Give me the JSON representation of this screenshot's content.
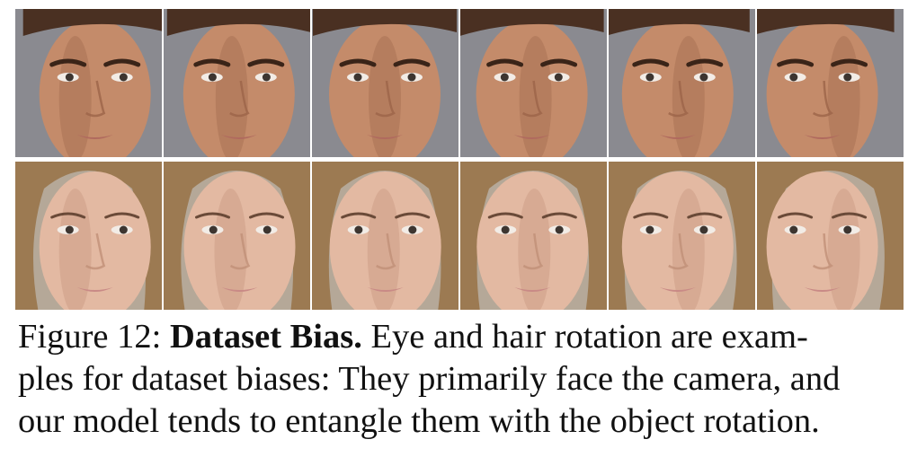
{
  "figure": {
    "rows": [
      {
        "subject": "male-face",
        "skin": "#c48b6a",
        "skin_shadow": "#9c6448",
        "hair": "#4a3022",
        "bg": "#8a8a90",
        "lip": "#b06a5e",
        "cells": [
          {
            "face_turn": 0.55
          },
          {
            "face_turn": 0.2
          },
          {
            "face_turn": 0.0
          },
          {
            "face_turn": -0.1
          },
          {
            "face_turn": -0.3
          },
          {
            "face_turn": -0.6
          }
        ]
      },
      {
        "subject": "female-face",
        "skin": "#e3b9a2",
        "skin_shadow": "#c09078",
        "hair": "#9c7a52",
        "bg": "#b5a898",
        "lip": "#c98a86",
        "cells": [
          {
            "face_turn": 0.55
          },
          {
            "face_turn": 0.25
          },
          {
            "face_turn": 0.05
          },
          {
            "face_turn": -0.05
          },
          {
            "face_turn": -0.3
          },
          {
            "face_turn": -0.6
          }
        ]
      }
    ]
  },
  "caption": {
    "prefix": "Figure 12: ",
    "title": "Dataset Bias.",
    "line1_rest": " Eye and hair rotation are exam-",
    "line2": "ples for dataset biases: They primarily face the camera, and",
    "line3": "our model tends to entangle them with the object rotation."
  }
}
